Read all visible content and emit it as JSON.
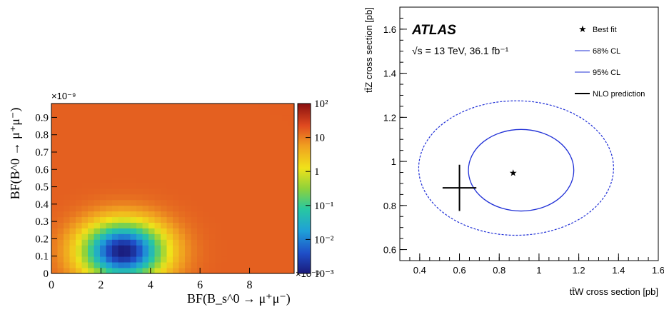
{
  "chart_data": [
    {
      "type": "heatmap",
      "xlabel": "BF(B_s^0 → μ⁺μ⁻)",
      "ylabel": "BF(B^0 → μ⁺μ⁻)",
      "x_exponent_label": "×10⁻⁹",
      "y_exponent_label": "×10⁻⁹",
      "xlim": [
        0,
        9.8
      ],
      "ylim": [
        0,
        0.98
      ],
      "x_ticks": [
        "0",
        "2",
        "4",
        "6",
        "8"
      ],
      "y_ticks": [
        "0",
        "0.1",
        "0.2",
        "0.3",
        "0.4",
        "0.5",
        "0.6",
        "0.7",
        "0.8",
        "0.9"
      ],
      "colorbar": {
        "scale": "log",
        "range": [
          0.001,
          100
        ],
        "tick_labels": [
          "10²",
          "10",
          "1",
          "10⁻¹",
          "10⁻²",
          "10⁻³"
        ],
        "tick_values": [
          100,
          10,
          1,
          0.1,
          0.01,
          0.001
        ]
      },
      "minimum": {
        "x": 2.9,
        "y": 0.13
      },
      "grid": false
    },
    {
      "type": "line",
      "xlabel": "tt̄W cross section [pb]",
      "ylabel": "tt̄Z cross section [pb]",
      "xlim": [
        0.3,
        1.6
      ],
      "ylim": [
        0.55,
        1.7
      ],
      "x_ticks": [
        "0.4",
        "0.6",
        "0.8",
        "1",
        "1.2",
        "1.4",
        "1.6"
      ],
      "y_ticks": [
        "0.6",
        "0.8",
        "1",
        "1.2",
        "1.4",
        "1.6"
      ],
      "experiment": "ATLAS",
      "energy_label": "√s = 13 TeV,  36.1 fb⁻¹",
      "best_fit": {
        "x": 0.87,
        "y": 0.95
      },
      "cl68_ellipse": {
        "center": [
          0.91,
          0.96
        ],
        "half_width": 0.265,
        "half_height": 0.185
      },
      "cl95_ellipse": {
        "center": [
          0.885,
          0.97
        ],
        "half_width": 0.49,
        "half_height": 0.305
      },
      "nlo_prediction": {
        "x": 0.6,
        "y": 0.88,
        "x_err": 0.085,
        "y_err": 0.105
      },
      "legend": [
        "Best fit",
        "68% CL",
        "95% CL",
        "NLO prediction"
      ],
      "legend_position": "top-right",
      "colors": {
        "contours": "#1f2fd6",
        "markers": "#000000"
      },
      "grid": false
    }
  ]
}
